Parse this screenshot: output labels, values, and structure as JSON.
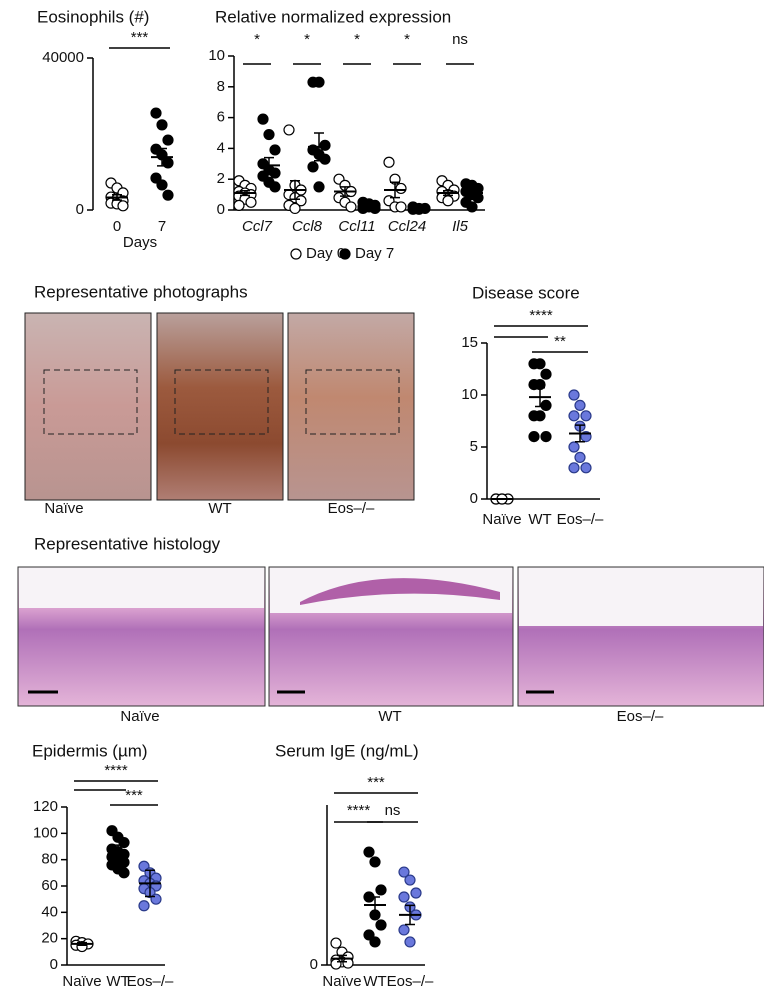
{
  "chart_data": [
    {
      "type": "dotplot",
      "title": "Eosinophils (#)",
      "xlabel": "Days",
      "categories": [
        "0",
        "7"
      ],
      "colors": [
        "#ffffff",
        "#000000"
      ],
      "values": [
        [
          7100,
          5800,
          4500,
          3400,
          2900,
          2400,
          1800,
          1600,
          1100
        ],
        [
          25500,
          22400,
          18400,
          16000,
          14500,
          12400,
          8400,
          6600,
          3900
        ]
      ],
      "means": [
        3300,
        13900
      ],
      "errors": [
        700,
        2300
      ],
      "ylim": [
        0,
        40000
      ],
      "yticks": [
        0,
        40000
      ],
      "annotations": [
        "***"
      ]
    },
    {
      "type": "grouped-dotplot",
      "title": "Relative normalized expression",
      "categories": [
        "Ccl7",
        "Ccl8",
        "Ccl11",
        "Ccl24",
        "Il5"
      ],
      "series": [
        {
          "name": "Day 0",
          "color": "#ffffff",
          "values": [
            [
              1.9,
              1.6,
              1.4,
              1.2,
              1.1,
              1.0,
              0.9,
              0.7,
              0.5,
              0.3
            ],
            [
              5.2,
              1.6,
              1.3,
              1.0,
              0.8,
              0.6,
              0.3,
              0.1
            ],
            [
              2.0,
              1.6,
              1.2,
              0.8,
              0.5,
              0.2
            ],
            [
              3.1,
              2.0,
              1.4,
              0.6,
              0.2,
              0.2
            ],
            [
              1.9,
              1.6,
              1.3,
              1.2,
              1.0,
              0.9,
              0.8,
              0.6
            ]
          ],
          "means": [
            1.1,
            1.3,
            1.2,
            1.3,
            1.1
          ],
          "errors": [
            0.15,
            0.6,
            0.3,
            0.5,
            0.15
          ]
        },
        {
          "name": "Day 7",
          "color": "#000000",
          "values": [
            [
              5.9,
              4.9,
              3.9,
              3.0,
              2.6,
              2.4,
              2.2,
              1.8,
              1.5
            ],
            [
              8.3,
              8.3,
              4.2,
              3.9,
              3.6,
              3.3,
              2.8,
              1.5
            ],
            [
              0.5,
              0.4,
              0.3,
              0.2,
              0.2,
              0.1,
              0.1
            ],
            [
              0.2,
              0.1,
              0.1,
              0.05,
              0.05
            ],
            [
              1.7,
              1.6,
              1.4,
              1.2,
              1.0,
              0.8,
              0.5,
              0.2
            ]
          ],
          "means": [
            2.9,
            4.1,
            0.25,
            0.1,
            1.1
          ],
          "errors": [
            0.5,
            0.9,
            0.05,
            0.02,
            0.2
          ]
        }
      ],
      "ylim": [
        0,
        10
      ],
      "yticks": [
        0,
        2,
        4,
        6,
        8,
        10
      ],
      "annotations": [
        "*",
        "*",
        "*",
        "*",
        "ns"
      ]
    },
    {
      "type": "dotplot",
      "title": "Disease score",
      "categories": [
        "Naïve",
        "WT",
        "Eos–/–"
      ],
      "colors": [
        "#ffffff",
        "#000000",
        "#6a78dc"
      ],
      "values": [
        [
          0,
          0,
          0,
          0,
          0
        ],
        [
          13,
          13,
          12,
          11,
          11,
          9,
          8,
          8,
          6,
          6
        ],
        [
          10,
          9,
          8,
          8,
          7,
          6,
          5,
          4,
          3,
          3
        ]
      ],
      "means": [
        0,
        9.8,
        6.3
      ],
      "errors": [
        0,
        0.9,
        0.8
      ],
      "ylim": [
        0,
        15
      ],
      "yticks": [
        0,
        5,
        10,
        15
      ],
      "annotations": [
        "****",
        "**"
      ]
    },
    {
      "type": "dotplot",
      "title": "Epidermis (µm)",
      "categories": [
        "Naïve",
        "WT",
        "Eos–/–"
      ],
      "colors": [
        "#ffffff",
        "#000000",
        "#6a78dc"
      ],
      "values": [
        [
          18,
          17,
          16,
          15,
          14
        ],
        [
          102,
          97,
          93,
          88,
          86,
          84,
          82,
          80,
          78,
          76,
          73,
          70
        ],
        [
          75,
          70,
          66,
          64,
          62,
          60,
          58,
          55,
          50,
          45
        ]
      ],
      "means": [
        16,
        84,
        62
      ],
      "errors": [
        1,
        7,
        10
      ],
      "ylim": [
        0,
        120
      ],
      "yticks": [
        0,
        20,
        40,
        60,
        80,
        100,
        120
      ],
      "annotations": [
        "****",
        "***"
      ]
    },
    {
      "type": "dotplot",
      "title": "Serum IgE (ng/mL)",
      "categories": [
        "Naïve",
        "WT",
        "Eos–/–"
      ],
      "colors": [
        "#ffffff",
        "#000000",
        "#6a78dc"
      ],
      "values": [
        [
          137,
          81,
          50,
          31,
          19,
          12,
          6
        ],
        [
          706,
          644,
          469,
          425,
          313,
          250,
          188,
          144
        ],
        [
          581,
          531,
          450,
          425,
          363,
          313,
          219,
          144
        ]
      ],
      "means": [
        40,
        375,
        313
      ],
      "errors": [
        20,
        50,
        60
      ],
      "ylim": [
        0,
        1000
      ],
      "yticks": [
        0
      ],
      "annotations": [
        "***",
        "****",
        "ns"
      ]
    }
  ],
  "photos": {
    "title": "Representative photographs",
    "labels": [
      "Naïve",
      "WT",
      "Eos–/–"
    ]
  },
  "histology": {
    "title": "Representative histology",
    "labels": [
      "Naïve",
      "WT",
      "Eos–/–"
    ]
  }
}
